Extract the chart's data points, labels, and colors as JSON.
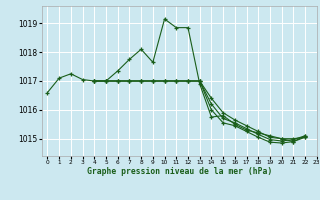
{
  "title": "Graphe pression niveau de la mer (hPa)",
  "bg_color": "#cce8f0",
  "grid_color": "#ffffff",
  "line_color": "#1a5e1a",
  "marker_color": "#1a5e1a",
  "ylim": [
    1014.4,
    1019.6
  ],
  "xlim": [
    -0.5,
    23
  ],
  "yticks": [
    1015,
    1016,
    1017,
    1018,
    1019
  ],
  "xtick_labels": [
    "0",
    "1",
    "2",
    "3",
    "4",
    "5",
    "6",
    "7",
    "8",
    "9",
    "10",
    "11",
    "12",
    "13",
    "14",
    "15",
    "16",
    "17",
    "18",
    "19",
    "20",
    "21",
    "22",
    "23"
  ],
  "series": [
    {
      "x": [
        0,
        1,
        2,
        3,
        4,
        5,
        6,
        7,
        8,
        9,
        10,
        11,
        12,
        13,
        14,
        15,
        16,
        17,
        18,
        19,
        20,
        21,
        22
      ],
      "y": [
        1016.6,
        1017.1,
        1017.25,
        1017.05,
        1017.0,
        1017.0,
        1017.35,
        1017.75,
        1018.1,
        1017.65,
        1019.15,
        1018.85,
        1018.85,
        1016.9,
        1015.75,
        1015.8,
        1015.5,
        1015.3,
        1015.2,
        1015.1,
        1015.0,
        1014.9,
        1015.1
      ]
    },
    {
      "x": [
        4,
        5,
        6,
        7,
        8,
        9,
        10,
        11,
        12,
        13,
        14,
        15,
        16,
        17,
        18,
        19,
        20,
        21,
        22
      ],
      "y": [
        1017.0,
        1017.0,
        1017.0,
        1017.0,
        1017.0,
        1017.0,
        1017.0,
        1017.0,
        1017.0,
        1017.0,
        1016.4,
        1015.9,
        1015.65,
        1015.45,
        1015.25,
        1015.05,
        1015.0,
        1015.0,
        1015.05
      ]
    },
    {
      "x": [
        4,
        5,
        6,
        7,
        8,
        9,
        10,
        11,
        12,
        13,
        14,
        15,
        16,
        17,
        18,
        19,
        20,
        21,
        22
      ],
      "y": [
        1017.0,
        1017.0,
        1017.0,
        1017.0,
        1017.0,
        1017.0,
        1017.0,
        1017.0,
        1017.0,
        1017.0,
        1016.2,
        1015.7,
        1015.55,
        1015.35,
        1015.15,
        1014.97,
        1014.92,
        1014.97,
        1015.1
      ]
    },
    {
      "x": [
        4,
        5,
        6,
        7,
        8,
        9,
        10,
        11,
        12,
        13,
        14,
        15,
        16,
        17,
        18,
        19,
        20,
        21,
        22
      ],
      "y": [
        1017.0,
        1017.0,
        1017.0,
        1017.0,
        1017.0,
        1017.0,
        1017.0,
        1017.0,
        1017.0,
        1017.0,
        1016.0,
        1015.55,
        1015.45,
        1015.25,
        1015.05,
        1014.88,
        1014.85,
        1014.9,
        1015.05
      ]
    }
  ]
}
